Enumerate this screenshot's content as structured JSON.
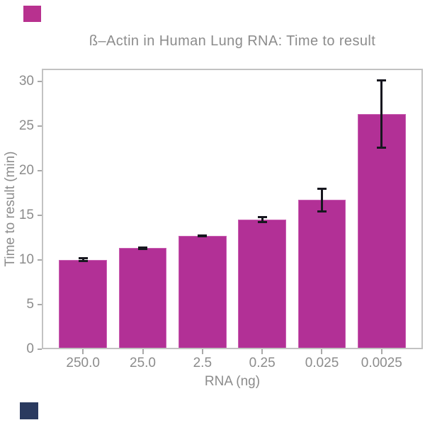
{
  "markers": {
    "top_left": {
      "name": "magenta-color-patch",
      "color": "#b8318f"
    },
    "bottom_left": {
      "name": "navy-color-patch",
      "color": "#2a3a5f"
    }
  },
  "chart_data": {
    "type": "bar",
    "title": "ß–Actin in Human Lung RNA: Time to result",
    "xlabel": "RNA (ng)",
    "ylabel": "Time to result (min)",
    "categories": [
      "250.0",
      "25.0",
      "2.5",
      "0.25",
      "0.025",
      "0.0025"
    ],
    "values": [
      10.0,
      11.3,
      12.7,
      14.5,
      16.7,
      26.3
    ],
    "errors": [
      0.2,
      0.1,
      0.1,
      0.3,
      1.3,
      3.8
    ],
    "yticks": [
      0,
      5,
      10,
      15,
      20,
      25,
      30
    ],
    "ylim": [
      0,
      31.4
    ],
    "grid": false,
    "legend": false,
    "bar_width_fraction": 0.8,
    "colors": {
      "bar": "#b23096",
      "bar_edge": "#c95fb2",
      "error": "#17171f",
      "frame": "#c2c2c2",
      "tick": "#a9a9a9",
      "text": "#8c8c8c"
    }
  }
}
